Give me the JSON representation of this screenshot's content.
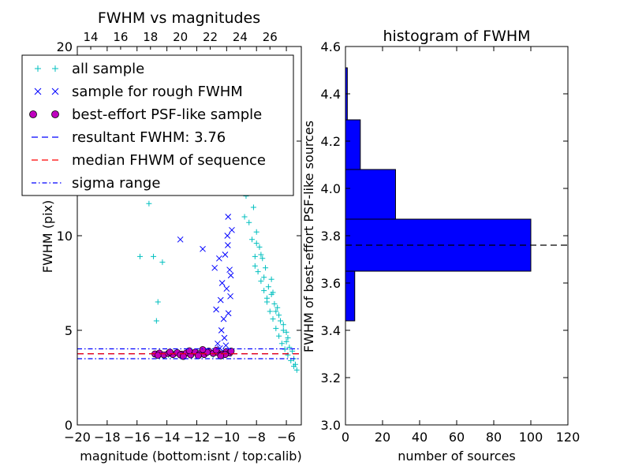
{
  "chart_data": [
    {
      "type": "scatter",
      "title": "FWHM vs magnitudes",
      "xlabel": "magnitude (bottom:isnt / top:calib)",
      "ylabel": "FWHM (pix)",
      "xlim": [
        -20,
        -5
      ],
      "ylim": [
        0,
        20
      ],
      "x_ticks": [
        "−20",
        "−18",
        "−16",
        "−14",
        "−12",
        "−10",
        "−8",
        "−6"
      ],
      "y_ticks": [
        "0",
        "5",
        "10",
        "15",
        "20"
      ],
      "top_axis": {
        "ticks": [
          "14",
          "16",
          "18",
          "20",
          "22",
          "24",
          "26"
        ],
        "bottom_positions": [
          -19.1,
          -17.1,
          -15.1,
          -13.1,
          -11.1,
          -9.1,
          -7.1
        ]
      },
      "legend_position": "top-left",
      "legend": [
        {
          "label": "all sample",
          "marker": "+",
          "color": "#00bfbf"
        },
        {
          "label": "sample for rough FWHM",
          "marker": "x",
          "color": "#0000ff"
        },
        {
          "label": "best-effort PSF-like sample",
          "marker": "o",
          "color": "#bf00bf"
        },
        {
          "label": "resultant FWHM: 3.76",
          "line": "dashed",
          "color": "#0000ff"
        },
        {
          "label": "median FHWM of sequence",
          "line": "dashed",
          "color": "#ff0000"
        },
        {
          "label": "sigma range",
          "line": "dashdot",
          "color": "#0000ff"
        }
      ],
      "hlines": [
        {
          "y": 3.76,
          "style": "dashed",
          "color": "#0000ff"
        },
        {
          "y": 3.76,
          "style": "dashed",
          "color": "#ff0000"
        },
        {
          "y": 4.02,
          "style": "dashdot",
          "color": "#0000ff"
        },
        {
          "y": 3.5,
          "style": "dashdot",
          "color": "#0000ff"
        }
      ],
      "series": [
        {
          "name": "all sample",
          "marker": "+",
          "color": "#00bfbf",
          "x": [
            -15.8,
            -15.2,
            -14.9,
            -14.7,
            -14.6,
            -14.3,
            -13.9,
            -13.5,
            -13.1,
            -12.7,
            -12.3,
            -11.9,
            -11.4,
            -10.9,
            -10.5,
            -10.1,
            -9.7,
            -9.3,
            -9.1,
            -8.9,
            -8.7,
            -8.5,
            -8.3,
            -8.1,
            -7.9,
            -7.7,
            -7.5,
            -7.3,
            -7.1,
            -6.9,
            -6.7,
            -6.5,
            -6.3,
            -6.1,
            -5.9,
            -5.7,
            -5.5,
            -5.3,
            -8.8,
            -8.6,
            -8.2,
            -7.8,
            -7.4,
            -7.0,
            -6.6,
            -6.2,
            -5.8,
            -8.4,
            -8.0,
            -7.6,
            -7.2,
            -6.8,
            -6.4,
            -6.0,
            -5.6,
            -8.5,
            -7.5,
            -6.5,
            -8.0,
            -7.0,
            -6.0,
            -5.5,
            -8.8,
            -8.1,
            -7.3,
            -6.7,
            -5.9,
            -8.3,
            -7.7,
            -6.9,
            -6.2,
            -5.4
          ],
          "y": [
            8.9,
            11.7,
            8.9,
            5.5,
            6.5,
            8.6,
            3.7,
            3.8,
            3.75,
            3.8,
            3.7,
            3.8,
            3.75,
            3.7,
            3.8,
            3.7,
            3.75,
            16.5,
            19.2,
            14.5,
            12.1,
            10.7,
            9.8,
            8.9,
            8.1,
            7.6,
            7.1,
            6.5,
            6.0,
            5.6,
            5.1,
            4.7,
            4.3,
            4.0,
            3.7,
            3.4,
            3.1,
            2.9,
            17.4,
            13.3,
            11.5,
            9.4,
            8.3,
            6.9,
            6.2,
            5.3,
            4.1,
            15.0,
            10.2,
            8.8,
            7.3,
            6.4,
            5.5,
            4.9,
            3.9,
            12.6,
            7.8,
            5.8,
            9.6,
            7.7,
            4.4,
            3.5,
            11.0,
            8.4,
            6.7,
            6.0,
            4.6,
            13.8,
            9.0,
            7.0,
            5.0,
            3.2
          ]
        },
        {
          "name": "sample for rough FWHM",
          "marker": "x",
          "color": "#0000ff",
          "x": [
            -13.1,
            -11.6,
            -10.8,
            -10.5,
            -10.3,
            -10.1,
            -9.95,
            -9.85,
            -9.7,
            -9.6,
            -10.7,
            -10.4,
            -10.2,
            -10.0,
            -9.9,
            -9.8,
            -9.75,
            -9.65,
            -10.6,
            -10.35,
            -10.15,
            -9.92,
            -9.8,
            -9.68,
            -10.45,
            -10.25,
            -10.05,
            -9.88,
            -9.72
          ],
          "y": [
            9.8,
            9.3,
            8.3,
            8.8,
            7.5,
            9.0,
            10.0,
            12.3,
            14.0,
            15.6,
            6.1,
            6.6,
            5.6,
            7.2,
            11.0,
            8.2,
            6.8,
            10.3,
            4.3,
            5.0,
            4.6,
            9.5,
            12.9,
            14.8,
            4.05,
            3.9,
            4.2,
            5.9,
            7.9
          ]
        },
        {
          "name": "best-effort PSF-like sample",
          "marker": "o",
          "color": "#bf00bf",
          "x": [
            -14.8,
            -14.5,
            -14.2,
            -13.9,
            -13.6,
            -13.3,
            -13.0,
            -12.7,
            -12.4,
            -12.1,
            -11.8,
            -11.5,
            -11.2,
            -10.9,
            -10.6,
            -10.3,
            -10.0,
            -9.8,
            -14.6,
            -13.8,
            -13.1,
            -12.5,
            -11.9,
            -11.3,
            -10.7,
            -10.1,
            -9.7,
            -12.9,
            -11.6,
            -10.4
          ],
          "y": [
            3.75,
            3.8,
            3.7,
            3.78,
            3.72,
            3.82,
            3.74,
            3.8,
            3.7,
            3.85,
            3.76,
            3.72,
            3.9,
            3.78,
            3.83,
            3.74,
            3.88,
            3.8,
            3.68,
            3.85,
            3.7,
            3.92,
            3.66,
            3.84,
            3.95,
            3.72,
            3.9,
            3.62,
            3.98,
            3.65
          ]
        }
      ]
    },
    {
      "type": "bar",
      "orientation": "horizontal",
      "title": "histogram of FWHM",
      "xlabel": "number of sources",
      "ylabel": "FWHM of best-effort PSF-like sources",
      "xlim": [
        0,
        120
      ],
      "ylim": [
        3.0,
        4.6
      ],
      "x_ticks": [
        "0",
        "20",
        "40",
        "60",
        "80",
        "100",
        "120"
      ],
      "y_ticks": [
        "3.0",
        "3.2",
        "3.4",
        "3.6",
        "3.8",
        "4.0",
        "4.2",
        "4.4",
        "4.6"
      ],
      "bins": [
        {
          "from": 3.44,
          "to": 3.65,
          "count": 5
        },
        {
          "from": 3.65,
          "to": 3.87,
          "count": 100
        },
        {
          "from": 3.87,
          "to": 4.08,
          "count": 27
        },
        {
          "from": 4.08,
          "to": 4.29,
          "count": 8
        },
        {
          "from": 4.29,
          "to": 4.51,
          "count": 1
        }
      ],
      "bar_color": "#0000ff",
      "hline": {
        "y": 3.76,
        "style": "dashed",
        "color": "#000000"
      }
    }
  ]
}
